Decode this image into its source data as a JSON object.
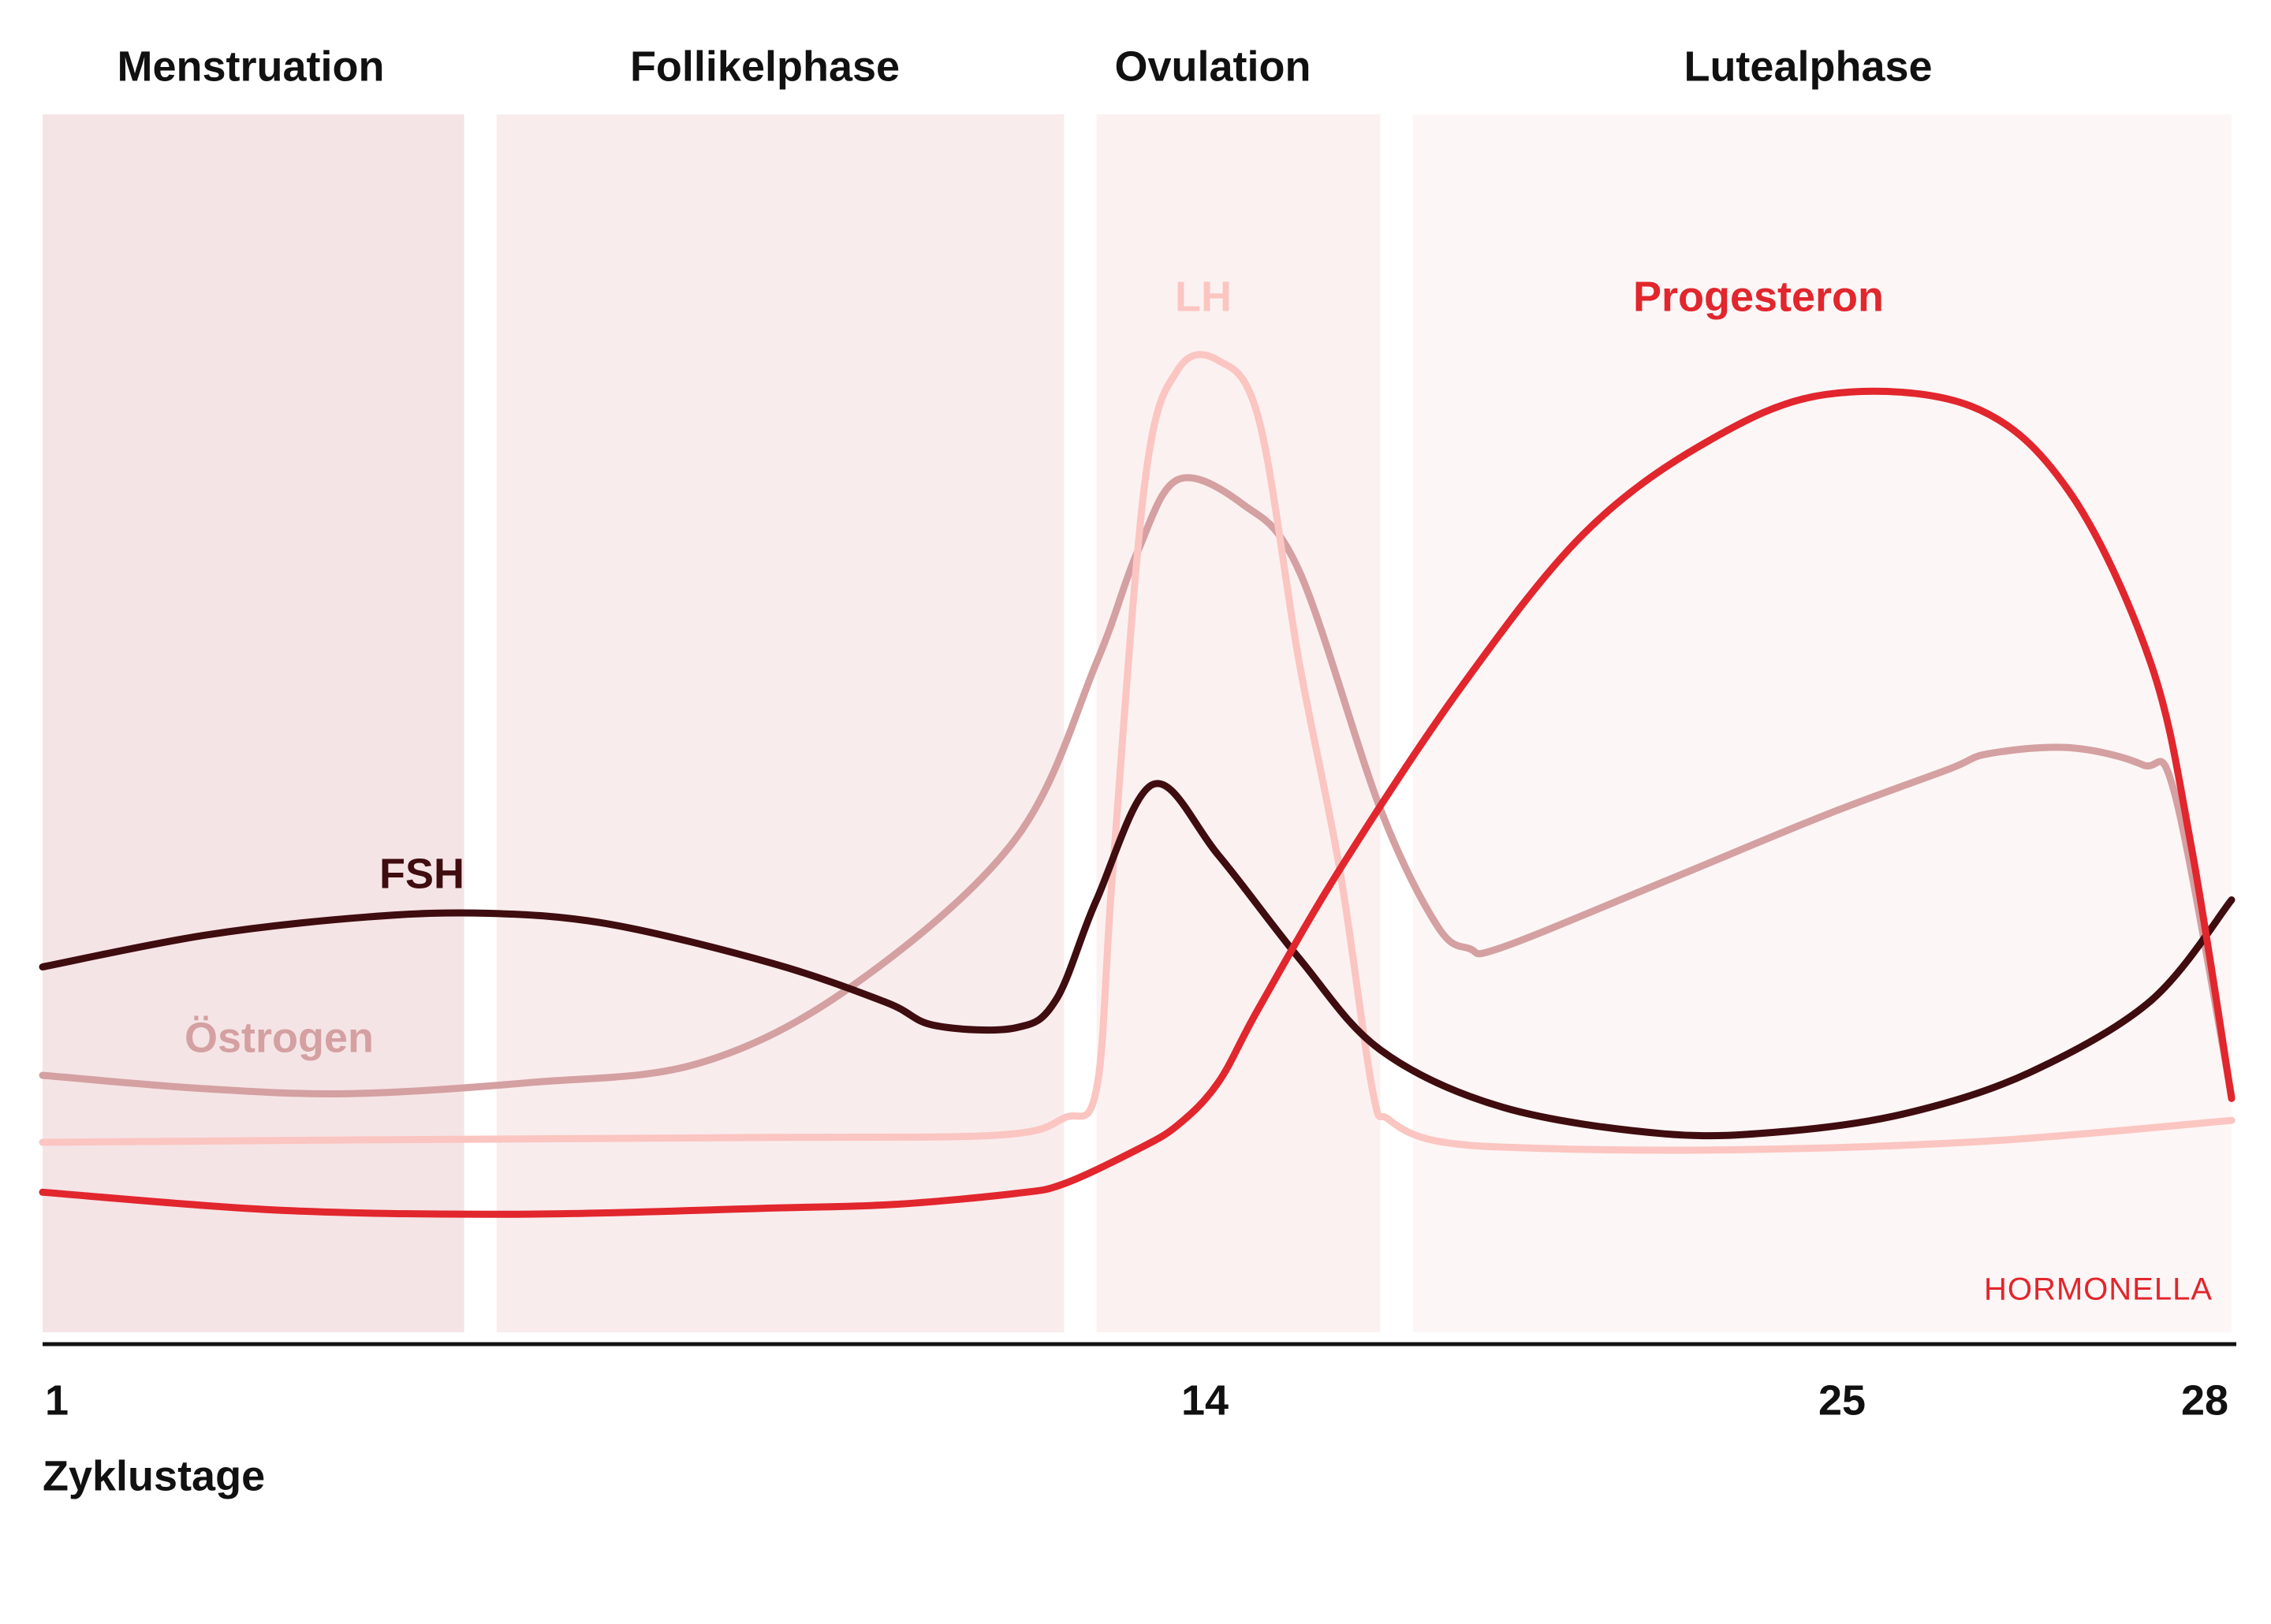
{
  "chart_data": {
    "type": "line",
    "title": "",
    "xlabel": "Zyklustage",
    "ylabel": "",
    "xlim": [
      1,
      28
    ],
    "ylim": [
      0,
      100
    ],
    "x_ticks": [
      "1",
      "14",
      "25",
      "28"
    ],
    "grid": false,
    "legend": "inline-labels",
    "brand": "HORMONELLA",
    "phases": [
      {
        "name": "Menstruation",
        "start": 1,
        "end": 6.2,
        "color": "#f5e4e6"
      },
      {
        "name": "Follikelphase",
        "start": 6.6,
        "end": 13.6,
        "color": "#f9eced"
      },
      {
        "name": "Ovulation",
        "start": 14,
        "end": 17.5,
        "color": "#fcf1f1"
      },
      {
        "name": "Lutealphase",
        "start": 17.9,
        "end": 28,
        "color": "#fdf6f6"
      }
    ],
    "series": [
      {
        "name": "FSH",
        "color": "#3f0c0f",
        "x": [
          1,
          3,
          5,
          6.5,
          8,
          10,
          11.4,
          12,
          13,
          13.5,
          14,
          14.7,
          15.5,
          16.5,
          17.5,
          19,
          21,
          22.5,
          24,
          25.5,
          27,
          28
        ],
        "y": [
          30,
          32.6,
          34.1,
          34.4,
          33.5,
          30.3,
          27.1,
          25.2,
          25,
          27.3,
          35.5,
          45,
          39.2,
          30.7,
          23.2,
          18.5,
          16.3,
          16.5,
          18,
          21.3,
          27.2,
          35.5
        ]
      },
      {
        "name": "Östrogen",
        "color": "#d4a0a1",
        "x": [
          1,
          3,
          4.8,
          7,
          9.1,
          11,
          13,
          14,
          14.5,
          15,
          15.8,
          16.5,
          17.5,
          18.2,
          18.6,
          19,
          21,
          23,
          24.5,
          25,
          26,
          26.9,
          27.3,
          28
        ],
        "y": [
          21.1,
          20,
          19.6,
          20.5,
          22.1,
          28.5,
          40.5,
          55,
          64,
          70,
          68,
          62.5,
          43,
          33.4,
          31.5,
          31.6,
          37,
          42.5,
          46.2,
          47.5,
          48,
          46.6,
          44.2,
          19.4
        ]
      },
      {
        "name": "LH",
        "color": "#fbc5c1",
        "x": [
          1,
          5,
          10,
          12.8,
          13.6,
          14,
          14.2,
          14.6,
          15,
          15.5,
          16,
          16.5,
          17,
          17.4,
          17.6,
          18.2,
          19.5,
          22,
          25,
          28
        ],
        "y": [
          15.6,
          15.8,
          16,
          16.2,
          17.6,
          20,
          38,
          70,
          79,
          79.8,
          75,
          55,
          38,
          20,
          17.5,
          15.7,
          15.1,
          15,
          15.7,
          17.4
        ]
      },
      {
        "name": "Progesteron",
        "color": "#e1262d",
        "x": [
          1,
          4,
          7,
          10,
          11.5,
          13,
          13.6,
          14.5,
          15,
          15.5,
          16,
          17,
          18.5,
          20,
          21.5,
          23,
          24.8,
          26,
          27,
          27.5,
          28
        ],
        "y": [
          11.5,
          10,
          9.7,
          10.2,
          10.5,
          11.4,
          12.2,
          15,
          17,
          20.5,
          26.6,
          38,
          53,
          65.5,
          73,
          77,
          76,
          69,
          55,
          40,
          19.2
        ]
      }
    ]
  }
}
